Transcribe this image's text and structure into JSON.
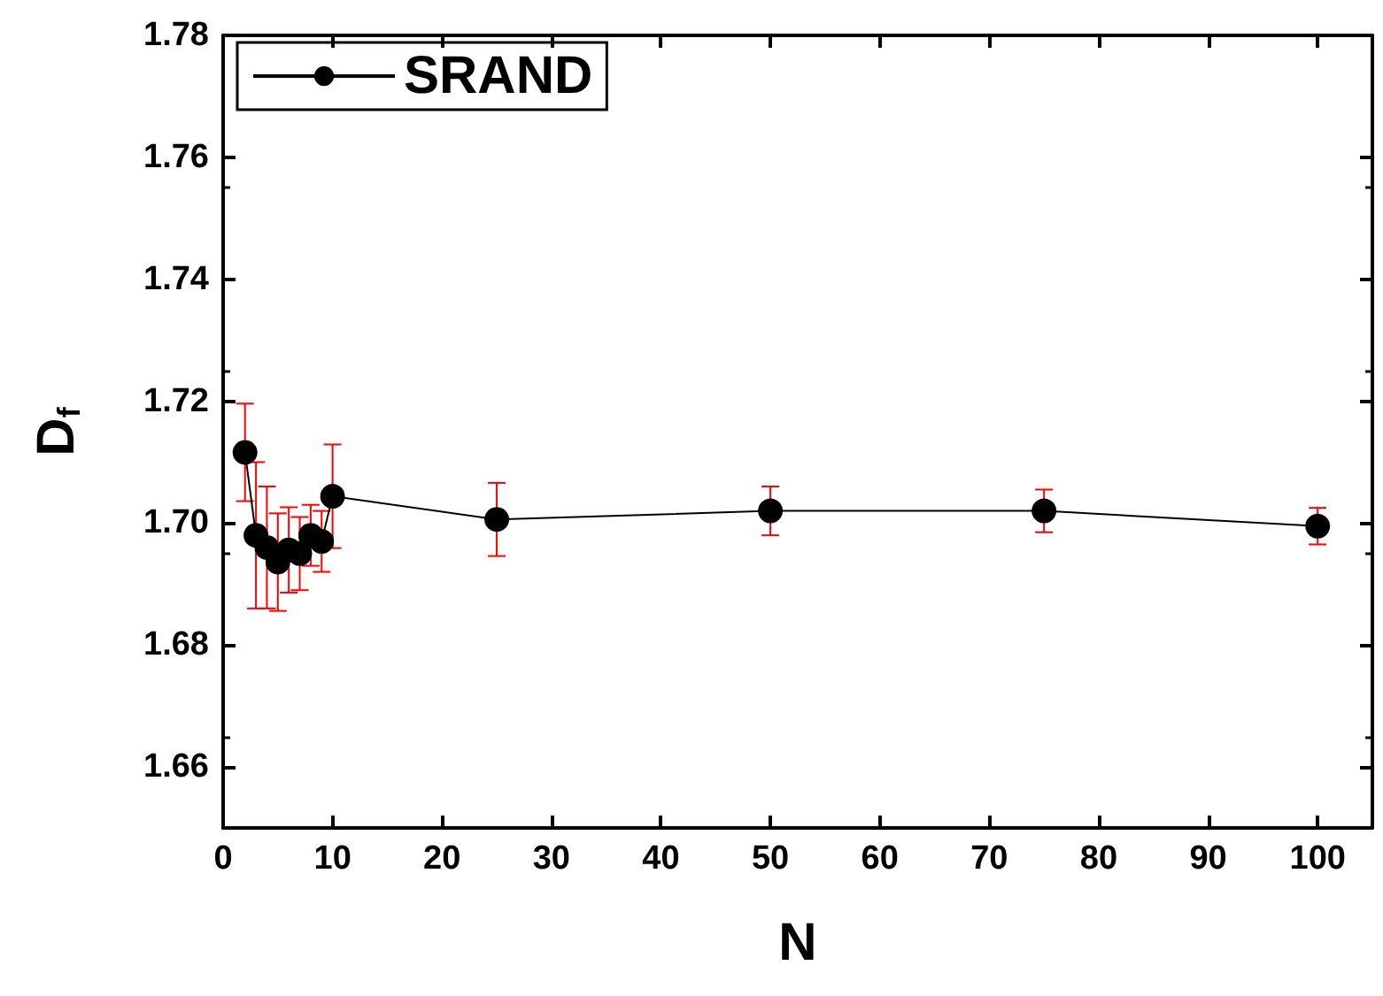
{
  "chart_data": {
    "type": "line",
    "xlabel": "N",
    "ylabel": "D$_{f}$",
    "x": [
      2,
      3,
      4,
      5,
      6,
      7,
      8,
      9,
      10,
      25,
      50,
      75,
      100
    ],
    "series": [
      {
        "name": "SRAND",
        "color": "#000000",
        "values": [
          1.7116,
          1.698,
          1.696,
          1.6936,
          1.6956,
          1.695,
          1.698,
          1.697,
          1.7044,
          1.7006,
          1.702,
          1.702,
          1.6995
        ],
        "errors": [
          0.008,
          0.012,
          0.01,
          0.008,
          0.007,
          0.006,
          0.005,
          0.005,
          0.0085,
          0.006,
          0.004,
          0.0035,
          0.003
        ]
      }
    ],
    "xlim": [
      0,
      105
    ],
    "xticks": [
      0,
      10,
      20,
      30,
      40,
      50,
      60,
      70,
      80,
      90,
      100
    ],
    "ylim": [
      1.65,
      1.78
    ],
    "yticks": [
      {
        "value": 1.66,
        "label": "1.66"
      },
      {
        "value": 1.68,
        "label": "1.68"
      },
      {
        "value": 1.7,
        "label": "1.70"
      },
      {
        "value": 1.72,
        "label": "1.72"
      },
      {
        "value": 1.74,
        "label": "1.74"
      },
      {
        "value": 1.76,
        "label": "1.76"
      },
      {
        "value": 1.78,
        "label": "1.78"
      }
    ],
    "marker": "circle",
    "line_style": "solid",
    "legend": "top left",
    "grid": false
  }
}
